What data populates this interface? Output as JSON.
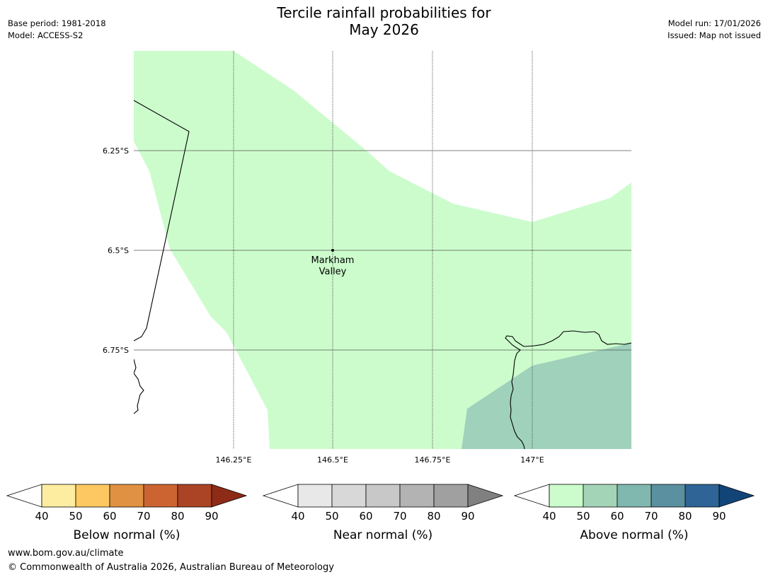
{
  "header": {
    "title_line1": "Tercile rainfall probabilities for",
    "title_line2": "May 2026",
    "base_period": "Base period: 1981-2018",
    "model": "Model: ACCESS-S2",
    "model_run": "Model run: 17/01/2026",
    "issued": "Issued: Map not issued"
  },
  "map": {
    "lon_labels": [
      "146.25°E",
      "146.5°E",
      "146.75°E",
      "147°E"
    ],
    "lat_labels": [
      "6.25°S",
      "6.5°S",
      "6.75°S"
    ],
    "place": {
      "name_line1": "Markham",
      "name_line2": "Valley"
    },
    "categories": [
      {
        "name": "Above normal",
        "level": "40-50",
        "color": "#ccfccc"
      },
      {
        "name": "Above normal",
        "level": "50-60",
        "color": "#9fd1bb"
      }
    ],
    "colors": {
      "coast": "#000000",
      "grid": "#555555"
    }
  },
  "colorbars": [
    {
      "label": "Below normal (%)",
      "ticks": [
        "40",
        "50",
        "60",
        "70",
        "80",
        "90"
      ],
      "colors": [
        "#ffffff",
        "#fdeda0",
        "#fdc862",
        "#e09142",
        "#cc6432",
        "#aa4424",
        "#8e2b17"
      ]
    },
    {
      "label": "Near normal (%)",
      "ticks": [
        "40",
        "50",
        "60",
        "70",
        "80",
        "90"
      ],
      "colors": [
        "#ffffff",
        "#e8e8e8",
        "#d8d8d8",
        "#c8c8c8",
        "#b3b3b3",
        "#a0a0a0",
        "#808080"
      ]
    },
    {
      "label": "Above normal (%)",
      "ticks": [
        "40",
        "50",
        "60",
        "70",
        "80",
        "90"
      ],
      "colors": [
        "#ffffff",
        "#ccfccc",
        "#a4d4b8",
        "#80b8b0",
        "#5a90a0",
        "#2e6496",
        "#124478"
      ]
    }
  ],
  "footer": {
    "url": "www.bom.gov.au/climate",
    "copyright": "© Commonwealth of Australia 2026, Australian Bureau of Meteorology"
  }
}
